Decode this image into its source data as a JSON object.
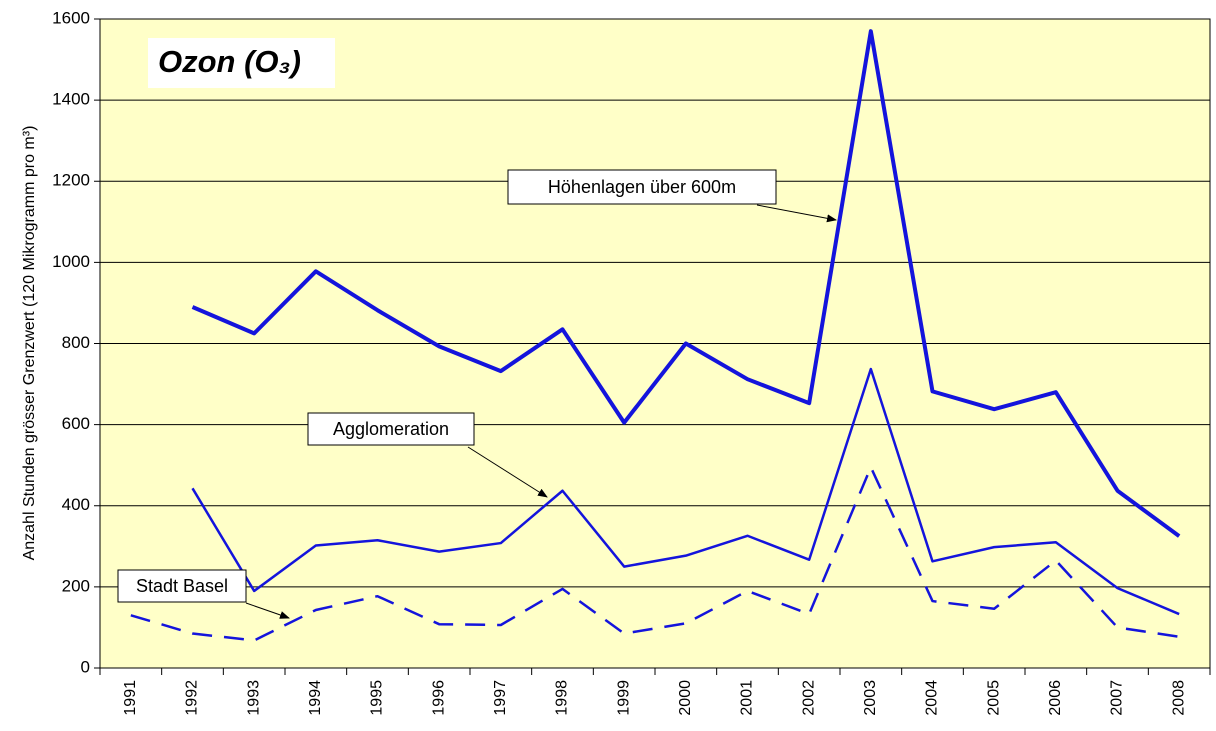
{
  "chart_data": {
    "type": "line",
    "title": "Ozon (O₃)",
    "y_label": "Anzahl Stunden grösser Grenzwert (120 Mikrogramm pro m³)",
    "categories": [
      "1991",
      "1992",
      "1993",
      "1994",
      "1995",
      "1996",
      "1997",
      "1998",
      "1999",
      "2000",
      "2001",
      "2002",
      "2003",
      "2004",
      "2005",
      "2006",
      "2007",
      "2008"
    ],
    "series": [
      {
        "name": "Höhenlagen über 600m",
        "color": "#1414dc",
        "line_width": 4,
        "dashed": false,
        "values": [
          null,
          890,
          825,
          978,
          882,
          793,
          732,
          835,
          605,
          800,
          712,
          653,
          1570,
          682,
          638,
          680,
          437,
          325
        ]
      },
      {
        "name": "Agglomeration",
        "color": "#1414dc",
        "line_width": 2.5,
        "dashed": false,
        "values": [
          null,
          443,
          190,
          302,
          315,
          287,
          308,
          437,
          250,
          277,
          326,
          267,
          737,
          263,
          298,
          310,
          197,
          133
        ]
      },
      {
        "name": "Stadt Basel",
        "color": "#1414dc",
        "line_width": 2.5,
        "dashed": true,
        "values": [
          130,
          85,
          68,
          143,
          177,
          108,
          106,
          195,
          85,
          110,
          190,
          133,
          495,
          165,
          146,
          265,
          100,
          77
        ]
      }
    ],
    "ylim": [
      0,
      1600
    ],
    "yticks": [
      0,
      200,
      400,
      600,
      800,
      1000,
      1200,
      1400,
      1600
    ],
    "grid": true,
    "plot_background": "#ffffc8"
  }
}
